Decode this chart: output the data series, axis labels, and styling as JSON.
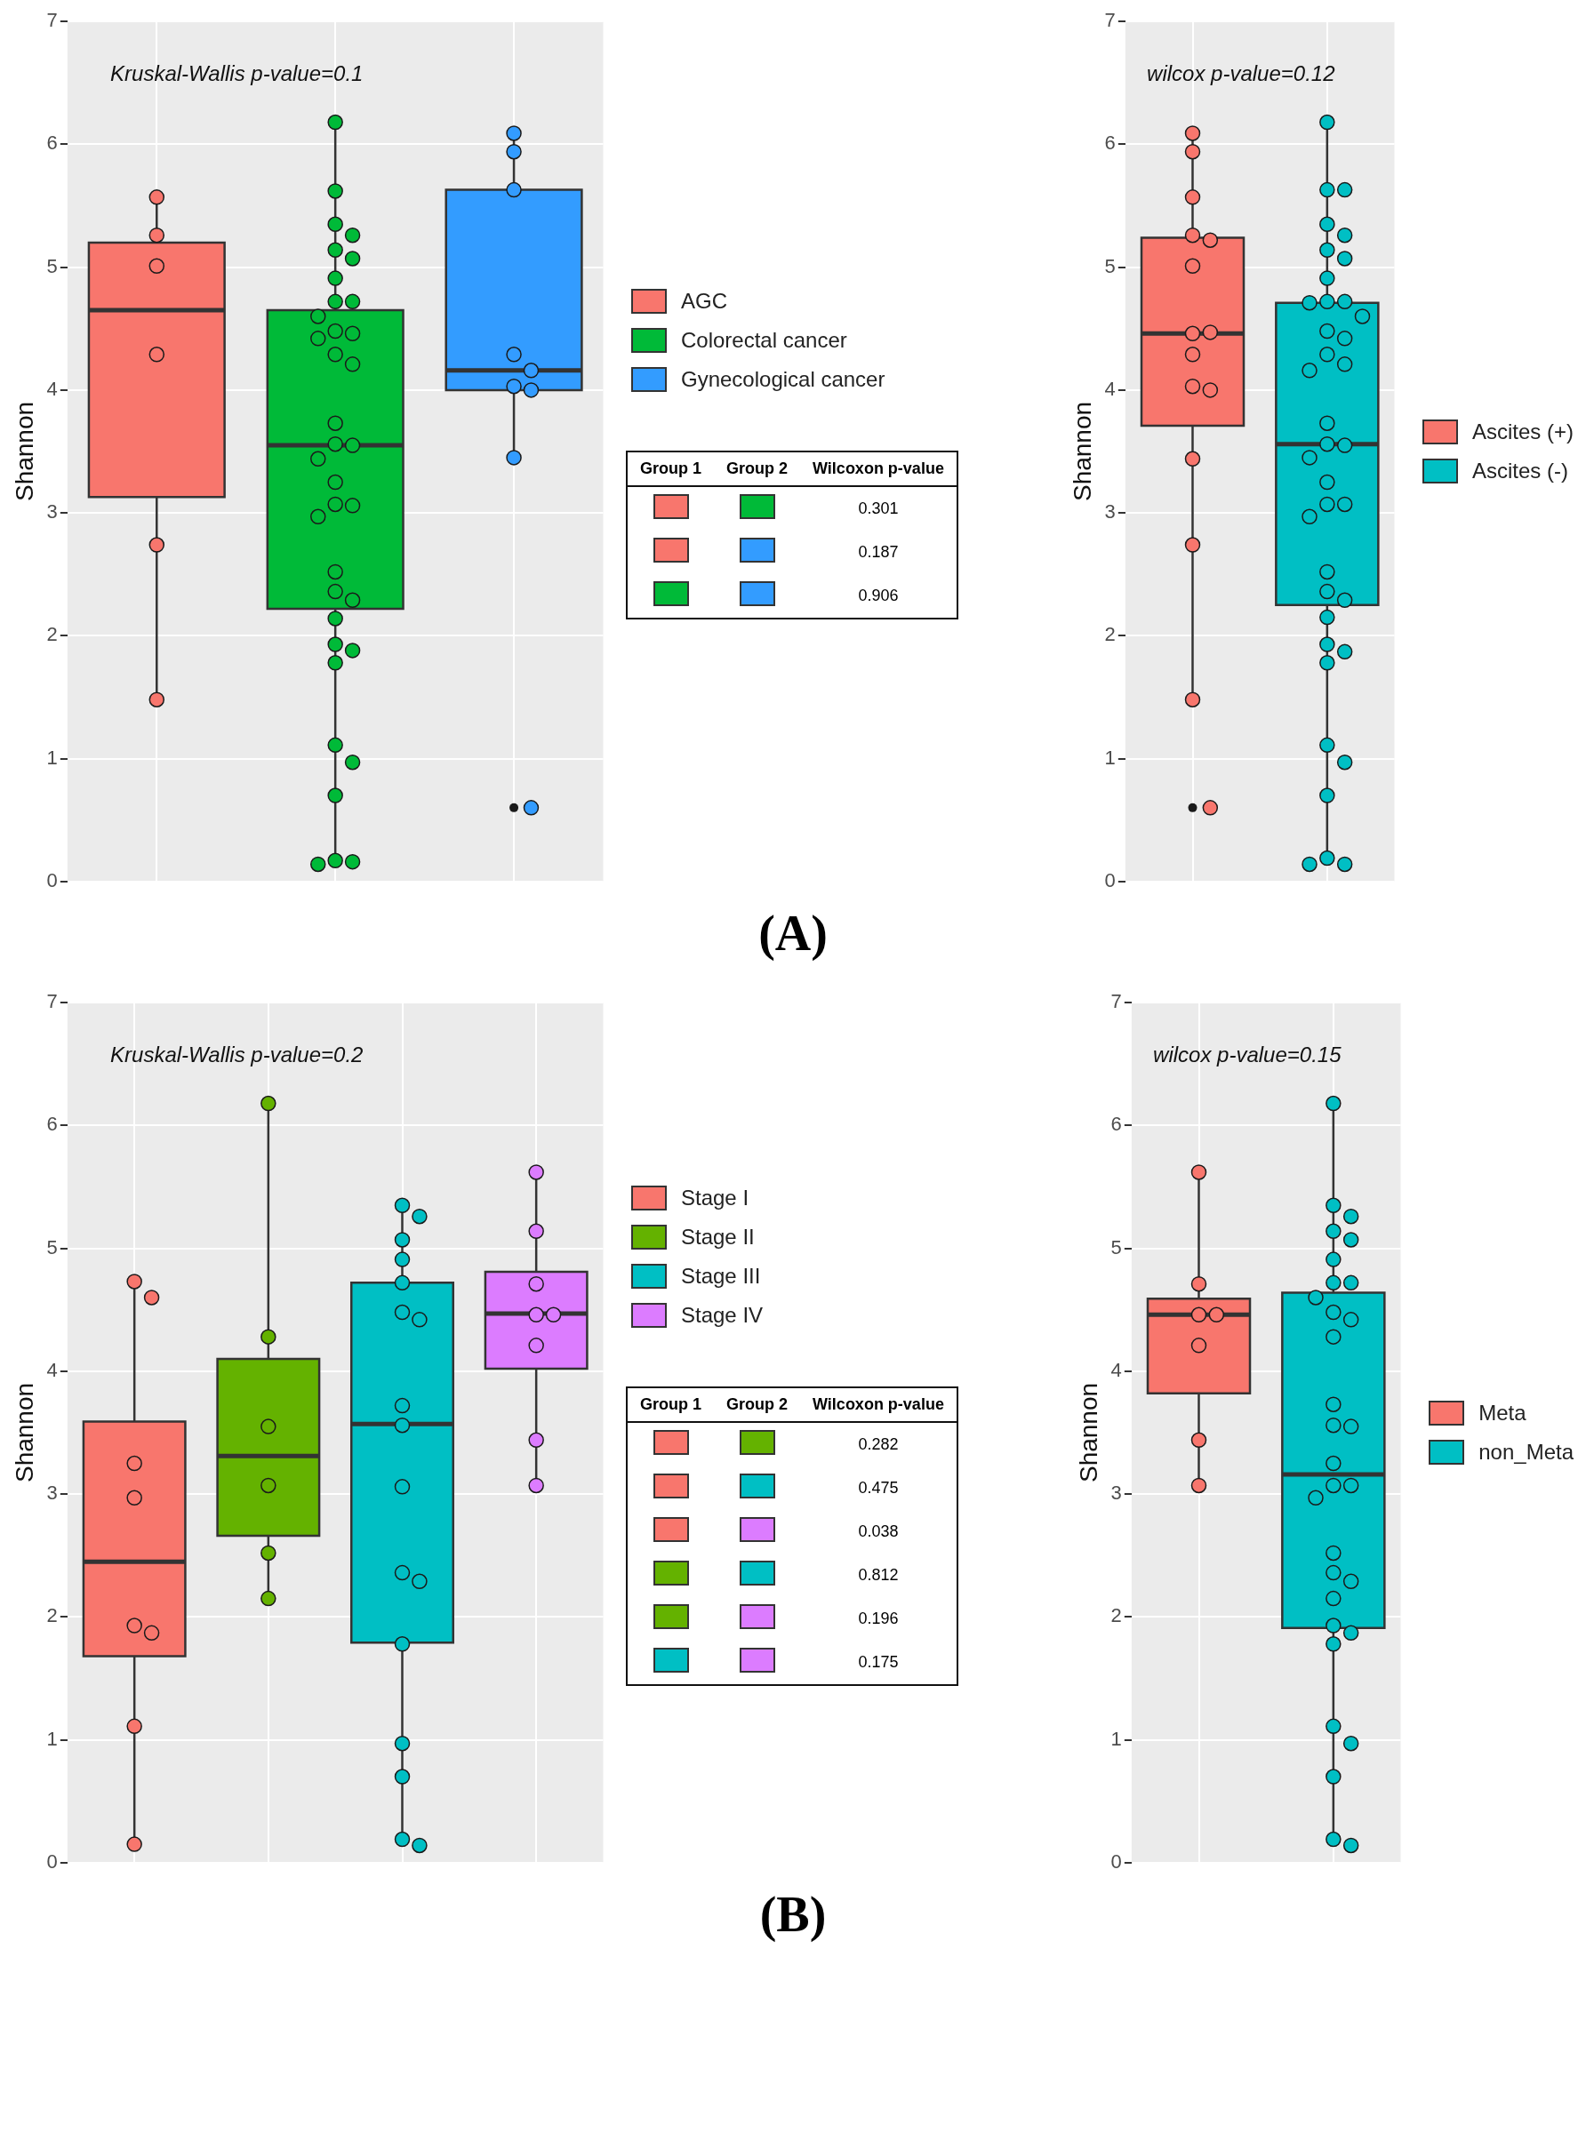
{
  "chart_data": [
    {
      "type": "box",
      "title": "Kruskal-Wallis p-value=0.1",
      "ylabel": "Shannon",
      "categories": [
        null,
        null,
        null
      ],
      "ylim": [
        0,
        7
      ],
      "yticks": [
        0,
        1,
        2,
        3,
        4,
        5,
        6,
        7
      ],
      "grid": true,
      "legend": "right",
      "tick_labels": "y",
      "marker": "circle",
      "annotations": [
        "(A)",
        "Group 1",
        "Group 2",
        "Wilcoxon p-value",
        "0.301",
        "0.187",
        "0.906"
      ],
      "series": [
        {
          "name": "AGC",
          "color": "#f8766d",
          "boxes": [
            {
              "low": 1.49,
              "q1": 3.13,
              "median": 4.65,
              "q3": 5.2,
              "high": 5.57
            },
            null,
            null
          ]
        },
        {
          "name": "Colorectal cancer",
          "color": "#00ba38",
          "boxes": [
            null,
            {
              "low": 0.14,
              "q1": 2.22,
              "median": 3.55,
              "q3": 4.65,
              "high": 6.18
            },
            null
          ]
        },
        {
          "name": "Gynecological cancer",
          "color": "#339cff",
          "boxes": [
            null,
            null,
            {
              "low": 3.46,
              "q1": 4.0,
              "median": 4.16,
              "q3": 5.63,
              "high": 6.09,
              "outliers": [
                0.6
              ]
            }
          ]
        },
        {
          "type": "scatter",
          "colors": [
            "#f8766d",
            "#00ba38",
            "#339cff"
          ],
          "values": [
            5.57,
            6.18,
            6.09
          ]
        },
        {
          "type": "scatter",
          "colors": [
            "#f8766d",
            "#00ba38",
            "#339cff"
          ],
          "values": [
            5.26,
            5.62,
            5.94
          ]
        },
        {
          "type": "scatter",
          "colors": [
            "#f8766d",
            "#00ba38",
            "#339cff"
          ],
          "values": [
            5.01,
            5.35,
            5.63
          ]
        },
        {
          "type": "scatter",
          "colors": [
            "#f8766d",
            "#00ba38",
            "#339cff"
          ],
          "values": [
            4.29,
            5.26,
            4.29
          ]
        },
        {
          "type": "scatter",
          "colors": [
            "#f8766d",
            "#00ba38",
            "#339cff"
          ],
          "values": [
            2.74,
            5.14,
            4.16
          ]
        },
        {
          "type": "scatter",
          "colors": [
            "#f8766d",
            "#00ba38",
            "#339cff"
          ],
          "values": [
            1.48,
            5.07,
            4.03
          ]
        },
        {
          "type": "scatter",
          "colors": [
            "#f8766d",
            "#00ba38",
            "#339cff"
          ],
          "values": [
            null,
            4.91,
            4.0
          ]
        },
        {
          "type": "scatter",
          "colors": [
            "#f8766d",
            "#00ba38",
            "#339cff"
          ],
          "values": [
            null,
            4.72,
            3.45
          ]
        },
        {
          "type": "scatter",
          "colors": [
            "#f8766d",
            "#00ba38",
            "#339cff"
          ],
          "values": [
            null,
            4.72,
            0.6
          ]
        },
        {
          "type": "scatter",
          "colors": [
            "#f8766d",
            "#00ba38",
            "#339cff"
          ],
          "values": [
            null,
            4.6,
            null
          ]
        },
        {
          "type": "scatter",
          "colors": [
            "#f8766d",
            "#00ba38",
            "#339cff"
          ],
          "values": [
            null,
            4.48,
            null
          ]
        },
        {
          "type": "scatter",
          "colors": [
            "#f8766d",
            "#00ba38",
            "#339cff"
          ],
          "values": [
            null,
            4.46,
            null
          ]
        },
        {
          "type": "scatter",
          "colors": [
            "#f8766d",
            "#00ba38",
            "#339cff"
          ],
          "values": [
            null,
            4.42,
            null
          ]
        },
        {
          "type": "scatter",
          "colors": [
            "#f8766d",
            "#00ba38",
            "#339cff"
          ],
          "values": [
            null,
            4.29,
            null
          ]
        },
        {
          "type": "scatter",
          "colors": [
            "#f8766d",
            "#00ba38",
            "#339cff"
          ],
          "values": [
            null,
            4.21,
            null
          ]
        },
        {
          "type": "scatter",
          "colors": [
            "#f8766d",
            "#00ba38",
            "#339cff"
          ],
          "values": [
            null,
            3.73,
            null
          ]
        },
        {
          "type": "scatter",
          "colors": [
            "#f8766d",
            "#00ba38",
            "#339cff"
          ],
          "values": [
            null,
            3.56,
            null
          ]
        },
        {
          "type": "scatter",
          "colors": [
            "#f8766d",
            "#00ba38",
            "#339cff"
          ],
          "values": [
            null,
            3.55,
            null
          ]
        },
        {
          "type": "scatter",
          "colors": [
            "#f8766d",
            "#00ba38",
            "#339cff"
          ],
          "values": [
            null,
            3.44,
            null
          ]
        },
        {
          "type": "scatter",
          "colors": [
            "#f8766d",
            "#00ba38",
            "#339cff"
          ],
          "values": [
            null,
            3.25,
            null
          ]
        },
        {
          "type": "scatter",
          "colors": [
            "#f8766d",
            "#00ba38",
            "#339cff"
          ],
          "values": [
            null,
            3.07,
            null
          ]
        },
        {
          "type": "scatter",
          "colors": [
            "#f8766d",
            "#00ba38",
            "#339cff"
          ],
          "values": [
            null,
            3.06,
            null
          ]
        },
        {
          "type": "scatter",
          "colors": [
            "#f8766d",
            "#00ba38",
            "#339cff"
          ],
          "values": [
            null,
            2.97,
            null
          ]
        },
        {
          "type": "scatter",
          "colors": [
            "#f8766d",
            "#00ba38",
            "#339cff"
          ],
          "values": [
            null,
            2.52,
            null
          ]
        },
        {
          "type": "scatter",
          "colors": [
            "#f8766d",
            "#00ba38",
            "#339cff"
          ],
          "values": [
            null,
            2.36,
            null
          ]
        },
        {
          "type": "scatter",
          "colors": [
            "#f8766d",
            "#00ba38",
            "#339cff"
          ],
          "values": [
            null,
            2.29,
            null
          ]
        },
        {
          "type": "scatter",
          "colors": [
            "#f8766d",
            "#00ba38",
            "#339cff"
          ],
          "values": [
            null,
            2.14,
            null
          ]
        },
        {
          "type": "scatter",
          "colors": [
            "#f8766d",
            "#00ba38",
            "#339cff"
          ],
          "values": [
            null,
            1.93,
            null
          ]
        },
        {
          "type": "scatter",
          "colors": [
            "#f8766d",
            "#00ba38",
            "#339cff"
          ],
          "values": [
            null,
            1.88,
            null
          ]
        },
        {
          "type": "scatter",
          "colors": [
            "#f8766d",
            "#00ba38",
            "#339cff"
          ],
          "values": [
            null,
            1.78,
            null
          ]
        },
        {
          "type": "scatter",
          "colors": [
            "#f8766d",
            "#00ba38",
            "#339cff"
          ],
          "values": [
            null,
            1.11,
            null
          ]
        },
        {
          "type": "scatter",
          "colors": [
            "#f8766d",
            "#00ba38",
            "#339cff"
          ],
          "values": [
            null,
            0.97,
            null
          ]
        },
        {
          "type": "scatter",
          "colors": [
            "#f8766d",
            "#00ba38",
            "#339cff"
          ],
          "values": [
            null,
            0.7,
            null
          ]
        },
        {
          "type": "scatter",
          "colors": [
            "#f8766d",
            "#00ba38",
            "#339cff"
          ],
          "values": [
            null,
            0.17,
            null
          ]
        },
        {
          "type": "scatter",
          "colors": [
            "#f8766d",
            "#00ba38",
            "#339cff"
          ],
          "values": [
            null,
            0.16,
            null
          ]
        },
        {
          "type": "scatter",
          "colors": [
            "#f8766d",
            "#00ba38",
            "#339cff"
          ],
          "values": [
            null,
            0.14,
            null
          ]
        }
      ]
    },
    {
      "type": "box",
      "title": "wilcox p-value=0.12",
      "ylabel": "Shannon",
      "categories": [
        null,
        null
      ],
      "ylim": [
        0,
        7
      ],
      "yticks": [
        0,
        1,
        2,
        3,
        4,
        5,
        6,
        7
      ],
      "grid": true,
      "legend": "right",
      "tick_labels": "y",
      "marker": "circle",
      "series": [
        {
          "name": "Ascites (+)",
          "color": "#f8766d",
          "boxes": [
            {
              "low": 1.48,
              "q1": 3.71,
              "median": 4.46,
              "q3": 5.24,
              "high": 6.09,
              "outliers": [
                0.6
              ]
            },
            null
          ]
        },
        {
          "name": "Ascites (-)",
          "color": "#00bfc4",
          "boxes": [
            null,
            {
              "low": 0.14,
              "q1": 2.25,
              "median": 3.56,
              "q3": 4.71,
              "high": 6.18
            }
          ]
        },
        {
          "type": "scatter",
          "colors": [
            "#f8766d",
            "#00bfc4"
          ],
          "values": [
            6.09,
            6.18
          ]
        },
        {
          "type": "scatter",
          "colors": [
            "#f8766d",
            "#00bfc4"
          ],
          "values": [
            5.94,
            5.63
          ]
        },
        {
          "type": "scatter",
          "colors": [
            "#f8766d",
            "#00bfc4"
          ],
          "values": [
            5.57,
            5.63
          ]
        },
        {
          "type": "scatter",
          "colors": [
            "#f8766d",
            "#00bfc4"
          ],
          "values": [
            5.26,
            5.35
          ]
        },
        {
          "type": "scatter",
          "colors": [
            "#f8766d",
            "#00bfc4"
          ],
          "values": [
            5.22,
            5.26
          ]
        },
        {
          "type": "scatter",
          "colors": [
            "#f8766d",
            "#00bfc4"
          ],
          "values": [
            5.01,
            5.14
          ]
        },
        {
          "type": "scatter",
          "colors": [
            "#f8766d",
            "#00bfc4"
          ],
          "values": [
            4.46,
            5.07
          ]
        },
        {
          "type": "scatter",
          "colors": [
            "#f8766d",
            "#00bfc4"
          ],
          "values": [
            4.47,
            4.91
          ]
        },
        {
          "type": "scatter",
          "colors": [
            "#f8766d",
            "#00bfc4"
          ],
          "values": [
            4.29,
            4.72
          ]
        },
        {
          "type": "scatter",
          "colors": [
            "#f8766d",
            "#00bfc4"
          ],
          "values": [
            4.03,
            4.72
          ]
        },
        {
          "type": "scatter",
          "colors": [
            "#f8766d",
            "#00bfc4"
          ],
          "values": [
            4.0,
            4.71
          ]
        },
        {
          "type": "scatter",
          "colors": [
            "#f8766d",
            "#00bfc4"
          ],
          "values": [
            3.44,
            4.6
          ]
        },
        {
          "type": "scatter",
          "colors": [
            "#f8766d",
            "#00bfc4"
          ],
          "values": [
            2.74,
            4.48
          ]
        },
        {
          "type": "scatter",
          "colors": [
            "#f8766d",
            "#00bfc4"
          ],
          "values": [
            1.48,
            4.42
          ]
        },
        {
          "type": "scatter",
          "colors": [
            "#f8766d",
            "#00bfc4"
          ],
          "values": [
            0.6,
            4.29
          ]
        },
        {
          "type": "scatter",
          "colors": [
            "#f8766d",
            "#00bfc4"
          ],
          "values": [
            null,
            4.21
          ]
        },
        {
          "type": "scatter",
          "colors": [
            "#f8766d",
            "#00bfc4"
          ],
          "values": [
            null,
            4.16
          ]
        },
        {
          "type": "scatter",
          "colors": [
            "#f8766d",
            "#00bfc4"
          ],
          "values": [
            null,
            3.73
          ]
        },
        {
          "type": "scatter",
          "colors": [
            "#f8766d",
            "#00bfc4"
          ],
          "values": [
            null,
            3.56
          ]
        },
        {
          "type": "scatter",
          "colors": [
            "#f8766d",
            "#00bfc4"
          ],
          "values": [
            null,
            3.55
          ]
        },
        {
          "type": "scatter",
          "colors": [
            "#f8766d",
            "#00bfc4"
          ],
          "values": [
            null,
            3.45
          ]
        },
        {
          "type": "scatter",
          "colors": [
            "#f8766d",
            "#00bfc4"
          ],
          "values": [
            null,
            3.25
          ]
        },
        {
          "type": "scatter",
          "colors": [
            "#f8766d",
            "#00bfc4"
          ],
          "values": [
            null,
            3.07
          ]
        },
        {
          "type": "scatter",
          "colors": [
            "#f8766d",
            "#00bfc4"
          ],
          "values": [
            null,
            3.07
          ]
        },
        {
          "type": "scatter",
          "colors": [
            "#f8766d",
            "#00bfc4"
          ],
          "values": [
            null,
            2.97
          ]
        },
        {
          "type": "scatter",
          "colors": [
            "#f8766d",
            "#00bfc4"
          ],
          "values": [
            null,
            2.52
          ]
        },
        {
          "type": "scatter",
          "colors": [
            "#f8766d",
            "#00bfc4"
          ],
          "values": [
            null,
            2.36
          ]
        },
        {
          "type": "scatter",
          "colors": [
            "#f8766d",
            "#00bfc4"
          ],
          "values": [
            null,
            2.29
          ]
        },
        {
          "type": "scatter",
          "colors": [
            "#f8766d",
            "#00bfc4"
          ],
          "values": [
            null,
            2.15
          ]
        },
        {
          "type": "scatter",
          "colors": [
            "#f8766d",
            "#00bfc4"
          ],
          "values": [
            null,
            1.93
          ]
        },
        {
          "type": "scatter",
          "colors": [
            "#f8766d",
            "#00bfc4"
          ],
          "values": [
            null,
            1.87
          ]
        },
        {
          "type": "scatter",
          "colors": [
            "#f8766d",
            "#00bfc4"
          ],
          "values": [
            null,
            1.78
          ]
        },
        {
          "type": "scatter",
          "colors": [
            "#f8766d",
            "#00bfc4"
          ],
          "values": [
            null,
            1.11
          ]
        },
        {
          "type": "scatter",
          "colors": [
            "#f8766d",
            "#00bfc4"
          ],
          "values": [
            null,
            0.97
          ]
        },
        {
          "type": "scatter",
          "colors": [
            "#f8766d",
            "#00bfc4"
          ],
          "values": [
            null,
            0.7
          ]
        },
        {
          "type": "scatter",
          "colors": [
            "#f8766d",
            "#00bfc4"
          ],
          "values": [
            null,
            0.19
          ]
        },
        {
          "type": "scatter",
          "colors": [
            "#f8766d",
            "#00bfc4"
          ],
          "values": [
            null,
            0.14
          ]
        },
        {
          "type": "scatter",
          "colors": [
            "#f8766d",
            "#00bfc4"
          ],
          "values": [
            null,
            0.14
          ]
        }
      ]
    },
    {
      "type": "box",
      "title": "Kruskal-Wallis p-value=0.2",
      "ylabel": "Shannon",
      "categories": [
        null,
        null,
        null,
        null
      ],
      "ylim": [
        0,
        7
      ],
      "yticks": [
        0,
        1,
        2,
        3,
        4,
        5,
        6,
        7
      ],
      "grid": true,
      "legend": "right",
      "tick_labels": "y",
      "marker": "circle",
      "annotations": [
        "(B)",
        "Group 1",
        "Group 2",
        "Wilcoxon p-value",
        "0.282",
        "0.475",
        "0.038",
        "0.812",
        "0.196",
        "0.175"
      ],
      "series": [
        {
          "name": "Stage I",
          "color": "#f8766d",
          "boxes": [
            {
              "low": 0.15,
              "q1": 1.68,
              "median": 2.45,
              "q3": 3.59,
              "high": 4.73
            },
            null,
            null,
            null
          ]
        },
        {
          "name": "Stage II",
          "color": "#64b200",
          "boxes": [
            null,
            {
              "low": 2.15,
              "q1": 2.66,
              "median": 3.31,
              "q3": 4.1,
              "high": 6.18
            },
            null,
            null
          ]
        },
        {
          "name": "Stage III",
          "color": "#00bfc4",
          "boxes": [
            null,
            null,
            {
              "low": 0.14,
              "q1": 1.79,
              "median": 3.57,
              "q3": 4.72,
              "high": 5.33
            },
            null
          ]
        },
        {
          "name": "Stage IV",
          "color": "#dc7cff",
          "boxes": [
            null,
            null,
            null,
            {
              "low": 3.07,
              "q1": 4.02,
              "median": 4.47,
              "q3": 4.81,
              "high": 5.62
            }
          ]
        },
        {
          "type": "scatter",
          "colors": [
            "#f8766d",
            "#64b200",
            "#00bfc4",
            "#dc7cff"
          ],
          "values": [
            4.73,
            6.18,
            5.35,
            5.62
          ]
        },
        {
          "type": "scatter",
          "colors": [
            "#f8766d",
            "#64b200",
            "#00bfc4",
            "#dc7cff"
          ],
          "values": [
            4.6,
            4.28,
            5.26,
            5.14
          ]
        },
        {
          "type": "scatter",
          "colors": [
            "#f8766d",
            "#64b200",
            "#00bfc4",
            "#dc7cff"
          ],
          "values": [
            3.25,
            3.55,
            5.07,
            4.71
          ]
        },
        {
          "type": "scatter",
          "colors": [
            "#f8766d",
            "#64b200",
            "#00bfc4",
            "#dc7cff"
          ],
          "values": [
            2.97,
            3.07,
            4.91,
            4.46
          ]
        },
        {
          "type": "scatter",
          "colors": [
            "#f8766d",
            "#64b200",
            "#00bfc4",
            "#dc7cff"
          ],
          "values": [
            1.93,
            2.52,
            4.72,
            4.46
          ]
        },
        {
          "type": "scatter",
          "colors": [
            "#f8766d",
            "#64b200",
            "#00bfc4",
            "#dc7cff"
          ],
          "values": [
            1.87,
            2.15,
            4.48,
            4.21
          ]
        },
        {
          "type": "scatter",
          "colors": [
            "#f8766d",
            "#64b200",
            "#00bfc4",
            "#dc7cff"
          ],
          "values": [
            1.11,
            null,
            4.42,
            3.44
          ]
        },
        {
          "type": "scatter",
          "colors": [
            "#f8766d",
            "#64b200",
            "#00bfc4",
            "#dc7cff"
          ],
          "values": [
            0.15,
            null,
            3.72,
            3.07
          ]
        },
        {
          "type": "scatter",
          "colors": [
            "#f8766d",
            "#64b200",
            "#00bfc4",
            "#dc7cff"
          ],
          "values": [
            null,
            null,
            3.56,
            null
          ]
        },
        {
          "type": "scatter",
          "colors": [
            "#f8766d",
            "#64b200",
            "#00bfc4",
            "#dc7cff"
          ],
          "values": [
            null,
            null,
            3.06,
            null
          ]
        },
        {
          "type": "scatter",
          "colors": [
            "#f8766d",
            "#64b200",
            "#00bfc4",
            "#dc7cff"
          ],
          "values": [
            null,
            null,
            2.36,
            null
          ]
        },
        {
          "type": "scatter",
          "colors": [
            "#f8766d",
            "#64b200",
            "#00bfc4",
            "#dc7cff"
          ],
          "values": [
            null,
            null,
            2.29,
            null
          ]
        },
        {
          "type": "scatter",
          "colors": [
            "#f8766d",
            "#64b200",
            "#00bfc4",
            "#dc7cff"
          ],
          "values": [
            null,
            null,
            1.78,
            null
          ]
        },
        {
          "type": "scatter",
          "colors": [
            "#f8766d",
            "#64b200",
            "#00bfc4",
            "#dc7cff"
          ],
          "values": [
            null,
            null,
            0.97,
            null
          ]
        },
        {
          "type": "scatter",
          "colors": [
            "#f8766d",
            "#64b200",
            "#00bfc4",
            "#dc7cff"
          ],
          "values": [
            null,
            null,
            0.7,
            null
          ]
        },
        {
          "type": "scatter",
          "colors": [
            "#f8766d",
            "#64b200",
            "#00bfc4",
            "#dc7cff"
          ],
          "values": [
            null,
            null,
            0.19,
            null
          ]
        },
        {
          "type": "scatter",
          "colors": [
            "#f8766d",
            "#64b200",
            "#00bfc4",
            "#dc7cff"
          ],
          "values": [
            null,
            null,
            0.14,
            null
          ]
        }
      ]
    },
    {
      "type": "box",
      "title": "wilcox p-value=0.15",
      "ylabel": "Shannon",
      "categories": [
        null,
        null
      ],
      "ylim": [
        0,
        7
      ],
      "yticks": [
        0,
        1,
        2,
        3,
        4,
        5,
        6,
        7
      ],
      "grid": true,
      "legend": "right",
      "tick_labels": "y",
      "marker": "circle",
      "series": [
        {
          "name": "Meta",
          "color": "#f8766d",
          "boxes": [
            {
              "low": 3.07,
              "q1": 3.82,
              "median": 4.46,
              "q3": 4.59,
              "high": 5.62
            },
            null
          ]
        },
        {
          "name": "non_Meta",
          "color": "#00bfc4",
          "boxes": [
            null,
            {
              "low": 0.14,
              "q1": 1.91,
              "median": 3.16,
              "q3": 4.64,
              "high": 6.18
            }
          ]
        },
        {
          "type": "scatter",
          "colors": [
            "#f8766d",
            "#00bfc4"
          ],
          "values": [
            5.62,
            6.18
          ]
        },
        {
          "type": "scatter",
          "colors": [
            "#f8766d",
            "#00bfc4"
          ],
          "values": [
            4.71,
            5.35
          ]
        },
        {
          "type": "scatter",
          "colors": [
            "#f8766d",
            "#00bfc4"
          ],
          "values": [
            4.46,
            5.26
          ]
        },
        {
          "type": "scatter",
          "colors": [
            "#f8766d",
            "#00bfc4"
          ],
          "values": [
            4.46,
            5.14
          ]
        },
        {
          "type": "scatter",
          "colors": [
            "#f8766d",
            "#00bfc4"
          ],
          "values": [
            4.21,
            5.07
          ]
        },
        {
          "type": "scatter",
          "colors": [
            "#f8766d",
            "#00bfc4"
          ],
          "values": [
            3.44,
            4.91
          ]
        },
        {
          "type": "scatter",
          "colors": [
            "#f8766d",
            "#00bfc4"
          ],
          "values": [
            3.07,
            4.72
          ]
        },
        {
          "type": "scatter",
          "colors": [
            "#f8766d",
            "#00bfc4"
          ],
          "values": [
            null,
            4.72
          ]
        },
        {
          "type": "scatter",
          "colors": [
            "#f8766d",
            "#00bfc4"
          ],
          "values": [
            null,
            4.6
          ]
        },
        {
          "type": "scatter",
          "colors": [
            "#f8766d",
            "#00bfc4"
          ],
          "values": [
            null,
            4.48
          ]
        },
        {
          "type": "scatter",
          "colors": [
            "#f8766d",
            "#00bfc4"
          ],
          "values": [
            null,
            4.42
          ]
        },
        {
          "type": "scatter",
          "colors": [
            "#f8766d",
            "#00bfc4"
          ],
          "values": [
            null,
            4.28
          ]
        },
        {
          "type": "scatter",
          "colors": [
            "#f8766d",
            "#00bfc4"
          ],
          "values": [
            null,
            3.73
          ]
        },
        {
          "type": "scatter",
          "colors": [
            "#f8766d",
            "#00bfc4"
          ],
          "values": [
            null,
            3.56
          ]
        },
        {
          "type": "scatter",
          "colors": [
            "#f8766d",
            "#00bfc4"
          ],
          "values": [
            null,
            3.55
          ]
        },
        {
          "type": "scatter",
          "colors": [
            "#f8766d",
            "#00bfc4"
          ],
          "values": [
            null,
            3.25
          ]
        },
        {
          "type": "scatter",
          "colors": [
            "#f8766d",
            "#00bfc4"
          ],
          "values": [
            null,
            3.07
          ]
        },
        {
          "type": "scatter",
          "colors": [
            "#f8766d",
            "#00bfc4"
          ],
          "values": [
            null,
            3.07
          ]
        },
        {
          "type": "scatter",
          "colors": [
            "#f8766d",
            "#00bfc4"
          ],
          "values": [
            null,
            2.97
          ]
        },
        {
          "type": "scatter",
          "colors": [
            "#f8766d",
            "#00bfc4"
          ],
          "values": [
            null,
            2.52
          ]
        },
        {
          "type": "scatter",
          "colors": [
            "#f8766d",
            "#00bfc4"
          ],
          "values": [
            null,
            2.36
          ]
        },
        {
          "type": "scatter",
          "colors": [
            "#f8766d",
            "#00bfc4"
          ],
          "values": [
            null,
            2.29
          ]
        },
        {
          "type": "scatter",
          "colors": [
            "#f8766d",
            "#00bfc4"
          ],
          "values": [
            null,
            2.15
          ]
        },
        {
          "type": "scatter",
          "colors": [
            "#f8766d",
            "#00bfc4"
          ],
          "values": [
            null,
            1.93
          ]
        },
        {
          "type": "scatter",
          "colors": [
            "#f8766d",
            "#00bfc4"
          ],
          "values": [
            null,
            1.87
          ]
        },
        {
          "type": "scatter",
          "colors": [
            "#f8766d",
            "#00bfc4"
          ],
          "values": [
            null,
            1.78
          ]
        },
        {
          "type": "scatter",
          "colors": [
            "#f8766d",
            "#00bfc4"
          ],
          "values": [
            null,
            1.11
          ]
        },
        {
          "type": "scatter",
          "colors": [
            "#f8766d",
            "#00bfc4"
          ],
          "values": [
            null,
            0.97
          ]
        },
        {
          "type": "scatter",
          "colors": [
            "#f8766d",
            "#00bfc4"
          ],
          "values": [
            null,
            0.7
          ]
        },
        {
          "type": "scatter",
          "colors": [
            "#f8766d",
            "#00bfc4"
          ],
          "values": [
            null,
            0.19
          ]
        },
        {
          "type": "scatter",
          "colors": [
            "#f8766d",
            "#00bfc4"
          ],
          "values": [
            null,
            0.14
          ]
        }
      ]
    }
  ]
}
